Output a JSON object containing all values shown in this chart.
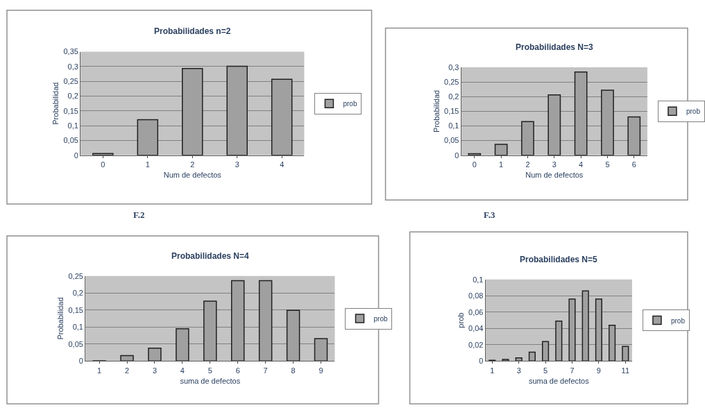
{
  "chart_data": [
    {
      "type": "bar",
      "title": "Probabilidades n=2",
      "xlabel": "Num de defectos",
      "ylabel": "Probabilidad",
      "annotations": [
        "F.2"
      ],
      "categories": [
        "0",
        "1",
        "2",
        "3",
        "4"
      ],
      "series": [
        {
          "name": "prob",
          "color": "#a0a0a0",
          "values": [
            0.006,
            0.12,
            0.293,
            0.301,
            0.257
          ]
        }
      ],
      "ylim": [
        0,
        0.35
      ],
      "yticks": [
        0,
        {
          "value": 0.05,
          "label": "0,05"
        },
        {
          "value": 0.1,
          "label": "0,1"
        },
        {
          "value": 0.15,
          "label": "0,15"
        },
        {
          "value": 0.2,
          "label": "0,2"
        },
        {
          "value": 0.25,
          "label": "0,25"
        },
        {
          "value": 0.3,
          "label": "0,3"
        },
        {
          "value": 0.35,
          "label": "0,35"
        }
      ],
      "grid": "y",
      "legend": "right"
    },
    {
      "type": "bar",
      "title": "Probabilidades N=3",
      "xlabel": "Num de defectos",
      "ylabel": "Probabilidad",
      "annotations": [
        "F.3"
      ],
      "categories": [
        "0",
        "1",
        "2",
        "3",
        "4",
        "5",
        "6"
      ],
      "series": [
        {
          "name": "prob",
          "color": "#a0a0a0",
          "values": [
            0.005,
            0.037,
            0.115,
            0.206,
            0.284,
            0.222,
            0.131
          ]
        }
      ],
      "ylim": [
        0,
        0.3
      ],
      "yticks": [
        0,
        {
          "value": 0.05,
          "label": "0,05"
        },
        {
          "value": 0.1,
          "label": "0,1"
        },
        {
          "value": 0.15,
          "label": "0,15"
        },
        {
          "value": 0.2,
          "label": "0,2"
        },
        {
          "value": 0.25,
          "label": "0,25"
        },
        {
          "value": 0.3,
          "label": "0,3"
        }
      ],
      "grid": "y",
      "legend": "right"
    },
    {
      "type": "bar",
      "title": "Probabilidades N=4",
      "xlabel": "suma de defectos",
      "ylabel": "Probabilidad",
      "categories": [
        "1",
        "2",
        "3",
        "4",
        "5",
        "6",
        "7",
        "8",
        "9"
      ],
      "series": [
        {
          "name": "prob",
          "color": "#a0a0a0",
          "values": [
            0.001,
            0.016,
            0.038,
            0.095,
            0.176,
            0.236,
            0.236,
            0.149,
            0.066
          ]
        }
      ],
      "ylim": [
        0,
        0.25
      ],
      "yticks": [
        0,
        {
          "value": 0.05,
          "label": "0,05"
        },
        {
          "value": 0.1,
          "label": "0,1"
        },
        {
          "value": 0.15,
          "label": "0,15"
        },
        {
          "value": 0.2,
          "label": "0,2"
        },
        {
          "value": 0.25,
          "label": "0,25"
        }
      ],
      "grid": "y",
      "legend": "right"
    },
    {
      "type": "bar",
      "title": "Probabilidades N=5",
      "xlabel": "suma de defectos",
      "ylabel": "prob",
      "categories": [
        "1",
        null,
        "3",
        null,
        "5",
        null,
        "7",
        null,
        "9",
        null,
        "11"
      ],
      "series": [
        {
          "name": "prob",
          "color": "#a0a0a0",
          "values": [
            0.001,
            0.002,
            0.004,
            0.011,
            0.024,
            0.049,
            0.076,
            0.086,
            0.076,
            0.044,
            0.018
          ]
        }
      ],
      "ylim": [
        0,
        0.1
      ],
      "yticks": [
        0,
        {
          "value": 0.02,
          "label": "0,02"
        },
        {
          "value": 0.04,
          "label": "0,04"
        },
        {
          "value": 0.06,
          "label": "0,06"
        },
        {
          "value": 0.08,
          "label": "0,08"
        },
        {
          "value": 0.1,
          "label": "0,1"
        }
      ],
      "grid": "y",
      "legend": "right"
    }
  ]
}
